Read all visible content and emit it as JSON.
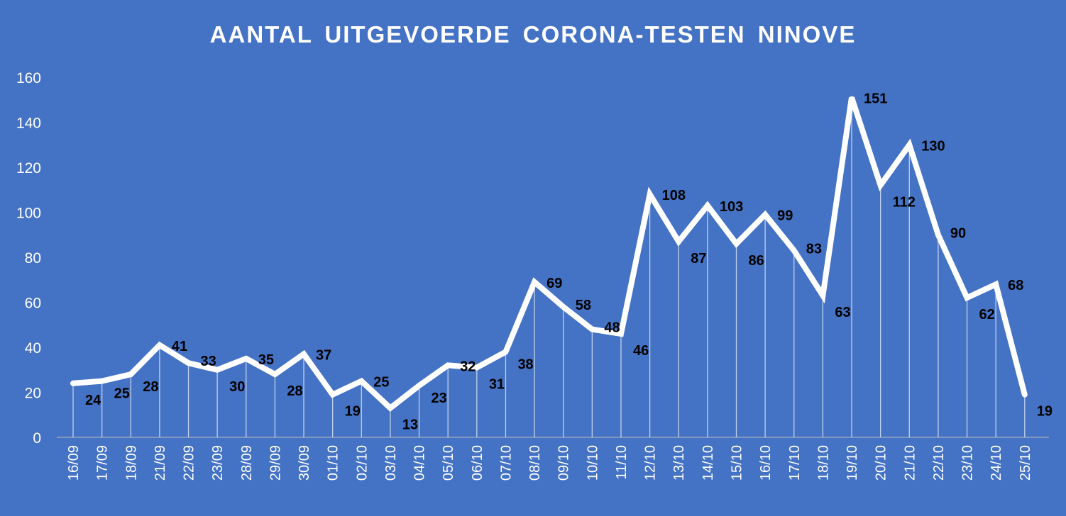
{
  "title": "AANTAL UITGEVOERDE  CORONA-TESTEN NINOVE",
  "colors": {
    "background": "#4472c4",
    "line": "#ffffff",
    "axis_text": "#ffffff",
    "data_label": "#000000"
  },
  "chart_data": {
    "type": "line",
    "title": "AANTAL UITGEVOERDE  CORONA-TESTEN NINOVE",
    "xlabel": "",
    "ylabel": "",
    "ylim": [
      0,
      160
    ],
    "yticks": [
      0,
      20,
      40,
      60,
      80,
      100,
      120,
      140,
      160
    ],
    "grid": false,
    "drop_lines": true,
    "categories": [
      "16/09",
      "17/09",
      "18/09",
      "21/09",
      "22/09",
      "23/09",
      "28/09",
      "29/09",
      "30/09",
      "01/10",
      "02/10",
      "03/10",
      "04/10",
      "05/10",
      "06/10",
      "07/10",
      "08/10",
      "09/10",
      "10/10",
      "11/10",
      "12/10",
      "13/10",
      "14/10",
      "15/10",
      "16/10",
      "17/10",
      "18/10",
      "19/10",
      "20/10",
      "21/10",
      "22/10",
      "23/10",
      "24/10",
      "25/10"
    ],
    "series": [
      {
        "values": [
          24,
          25,
          28,
          41,
          33,
          30,
          35,
          28,
          37,
          19,
          25,
          13,
          23,
          32,
          31,
          38,
          69,
          58,
          48,
          46,
          108,
          87,
          103,
          86,
          99,
          83,
          63,
          151,
          112,
          130,
          90,
          62,
          68,
          19
        ]
      }
    ]
  }
}
